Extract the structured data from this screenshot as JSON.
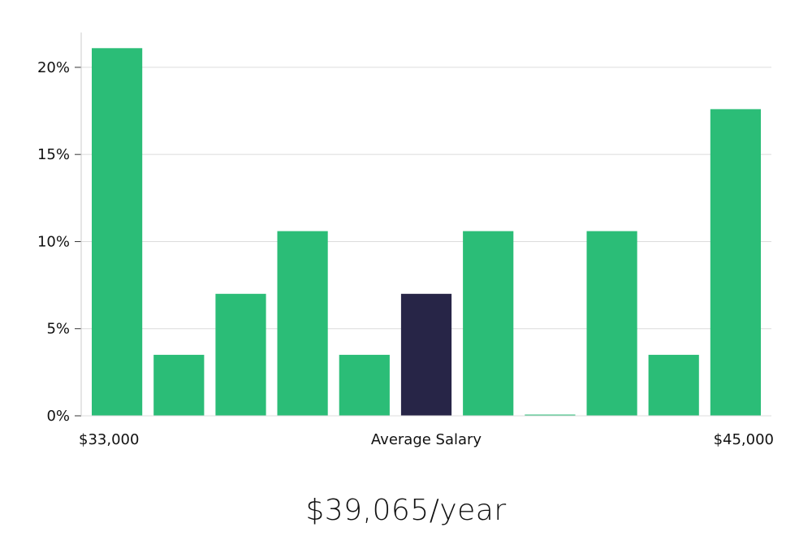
{
  "chart_data": {
    "type": "bar",
    "categories": [
      "1",
      "2",
      "3",
      "4",
      "5",
      "6",
      "7",
      "8",
      "9",
      "10",
      "11"
    ],
    "values": [
      21.1,
      3.5,
      7.0,
      10.6,
      3.5,
      7.0,
      10.6,
      0.0,
      10.6,
      3.5,
      17.6
    ],
    "highlight_index": 5,
    "ylim": [
      0,
      22
    ],
    "yticks": [
      0,
      5,
      10,
      15,
      20
    ],
    "ytick_labels": [
      "0%",
      "5%",
      "10%",
      "15%",
      "20%"
    ],
    "x_min_label": "$33,000",
    "x_max_label": "$45,000",
    "average_label": "Average Salary",
    "grid": true,
    "colors": {
      "bar": "#2bbd77",
      "highlight": "#272547",
      "grid": "#dcdcdc",
      "axis": "#cccccc"
    }
  },
  "salary": {
    "value": "$39,065/year"
  }
}
